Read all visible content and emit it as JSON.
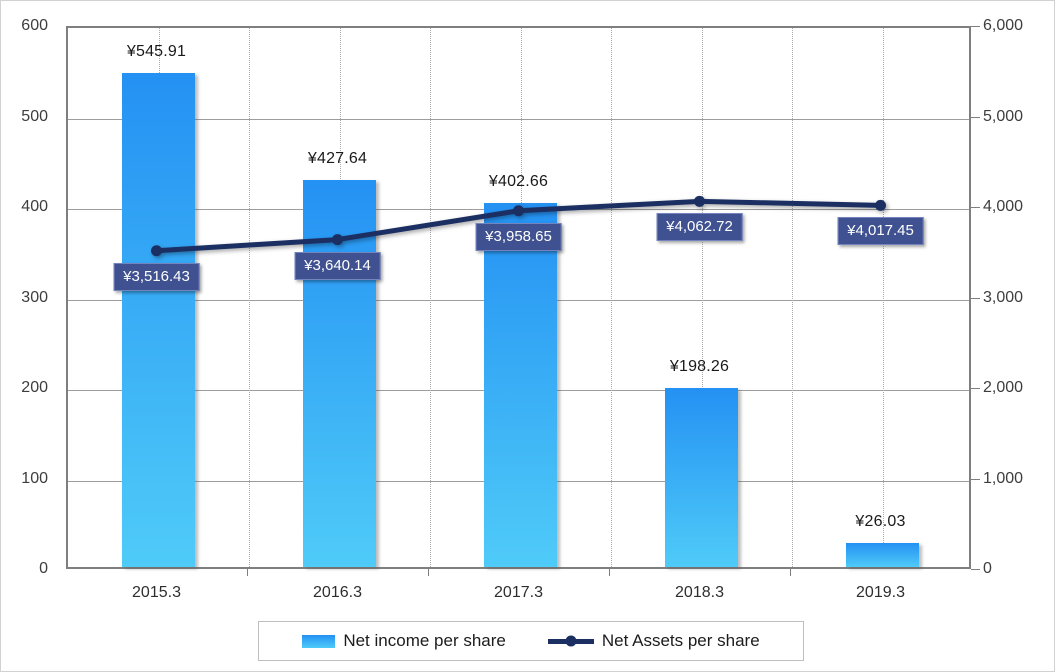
{
  "chart_data": {
    "type": "bar",
    "subtype": "combo-bar-line",
    "categories": [
      "2015.3",
      "2016.3",
      "2017.3",
      "2018.3",
      "2019.3"
    ],
    "series": [
      {
        "name": "Net income per share",
        "chart_type": "bar",
        "axis": "left",
        "values": [
          545.91,
          427.64,
          402.66,
          198.26,
          26.03
        ],
        "data_labels": [
          "¥545.91",
          "¥427.64",
          "¥402.66",
          "¥198.26",
          "¥26.03"
        ]
      },
      {
        "name": "Net Assets per share",
        "chart_type": "line",
        "axis": "right",
        "values": [
          3516.43,
          3640.14,
          3958.65,
          4062.72,
          4017.45
        ],
        "data_labels": [
          "¥3,516.43",
          "¥3,640.14",
          "¥3,958.65",
          "¥4,062.72",
          "¥4,017.45"
        ]
      }
    ],
    "title": "",
    "xlabel": "",
    "ylabel": "",
    "left_axis": {
      "min": 0,
      "max": 600,
      "step": 100,
      "tick_labels": [
        "0",
        "100",
        "200",
        "300",
        "400",
        "500",
        "600"
      ]
    },
    "right_axis": {
      "min": 0,
      "max": 6000,
      "step": 1000,
      "tick_labels": [
        "0",
        "1,000",
        "2,000",
        "3,000",
        "4,000",
        "5,000",
        "6,000"
      ]
    },
    "grid": {
      "horizontal": "solid",
      "vertical": "dotted",
      "vertical_per_half_category": true
    },
    "legend_position": "bottom",
    "colors": {
      "bar_gradient_top": "#2491F3",
      "bar_gradient_bottom": "#4FCBF8",
      "line": "#1B2F63",
      "marker": "#1B2F63",
      "label_box_fill": "#3F5190",
      "label_box_border": "#7484BE",
      "label_text": "#FFFFFF",
      "bar_label_text": "#1A1A1A",
      "axis_text": "#3D3D3D",
      "gridline": "#9D9D9D",
      "plot_border": "#7F7F7F"
    }
  }
}
